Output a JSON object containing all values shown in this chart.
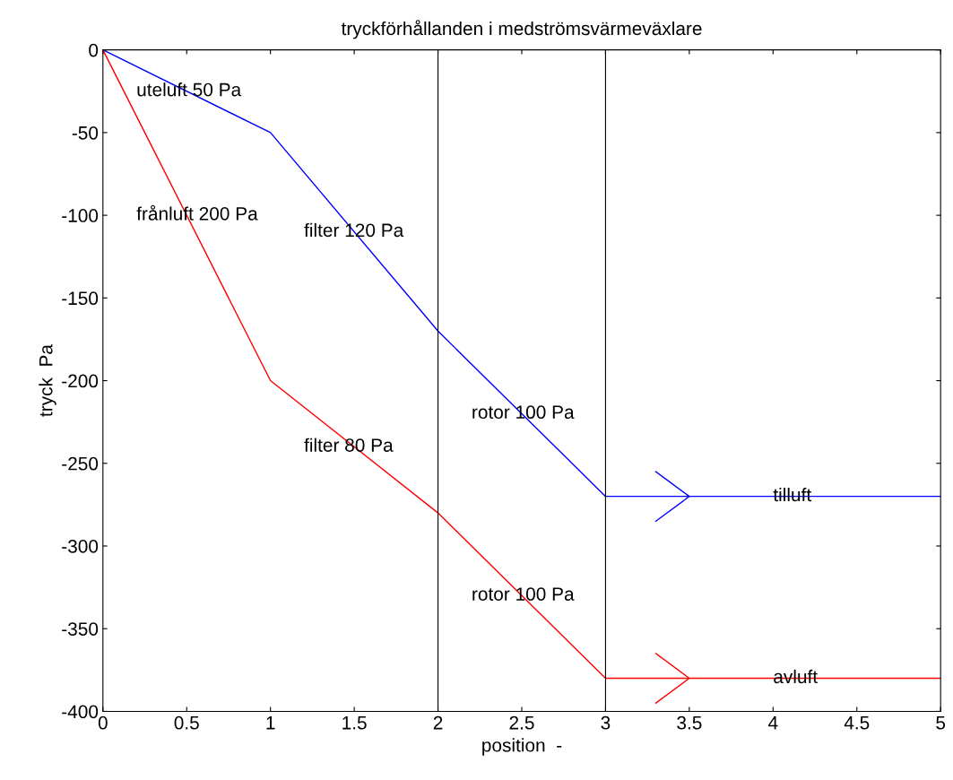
{
  "chart_data": {
    "type": "line",
    "title": "tryckförhållanden i medströmsvärmeväxlare",
    "xlabel": "position  -",
    "ylabel": "tryck  Pa",
    "x": [
      0,
      1,
      2,
      3,
      5
    ],
    "series": [
      {
        "color": "#0000ff",
        "values": [
          0,
          -50,
          -170,
          -270,
          -270
        ]
      },
      {
        "color": "#ff0000",
        "values": [
          0,
          -200,
          -280,
          -380,
          -380
        ]
      }
    ],
    "xlim": [
      0,
      5
    ],
    "ylim": [
      -400,
      0
    ],
    "xticks": [
      0,
      0.5,
      1,
      1.5,
      2,
      2.5,
      3,
      3.5,
      4,
      4.5,
      5
    ],
    "yticks": [
      -400,
      -350,
      -300,
      -250,
      -200,
      -150,
      -100,
      -50,
      0
    ],
    "ref_lines": [
      {
        "axis": "x",
        "value": 2,
        "color": "#000000"
      },
      {
        "axis": "x",
        "value": 3,
        "color": "#000000"
      }
    ],
    "annotations": [
      "uteluft 50 Pa",
      "frånluft 200 Pa",
      "filter 120 Pa",
      "filter 80 Pa",
      "rotor 100 Pa",
      "rotor 100 Pa",
      {
        "text": "tilluft",
        "x": 4,
        "y": -270
      },
      {
        "text": "avluft",
        "x": 4,
        "y": -380
      }
    ],
    "grid": false,
    "legend": false,
    "marker": "none",
    "line_style": "solid"
  }
}
